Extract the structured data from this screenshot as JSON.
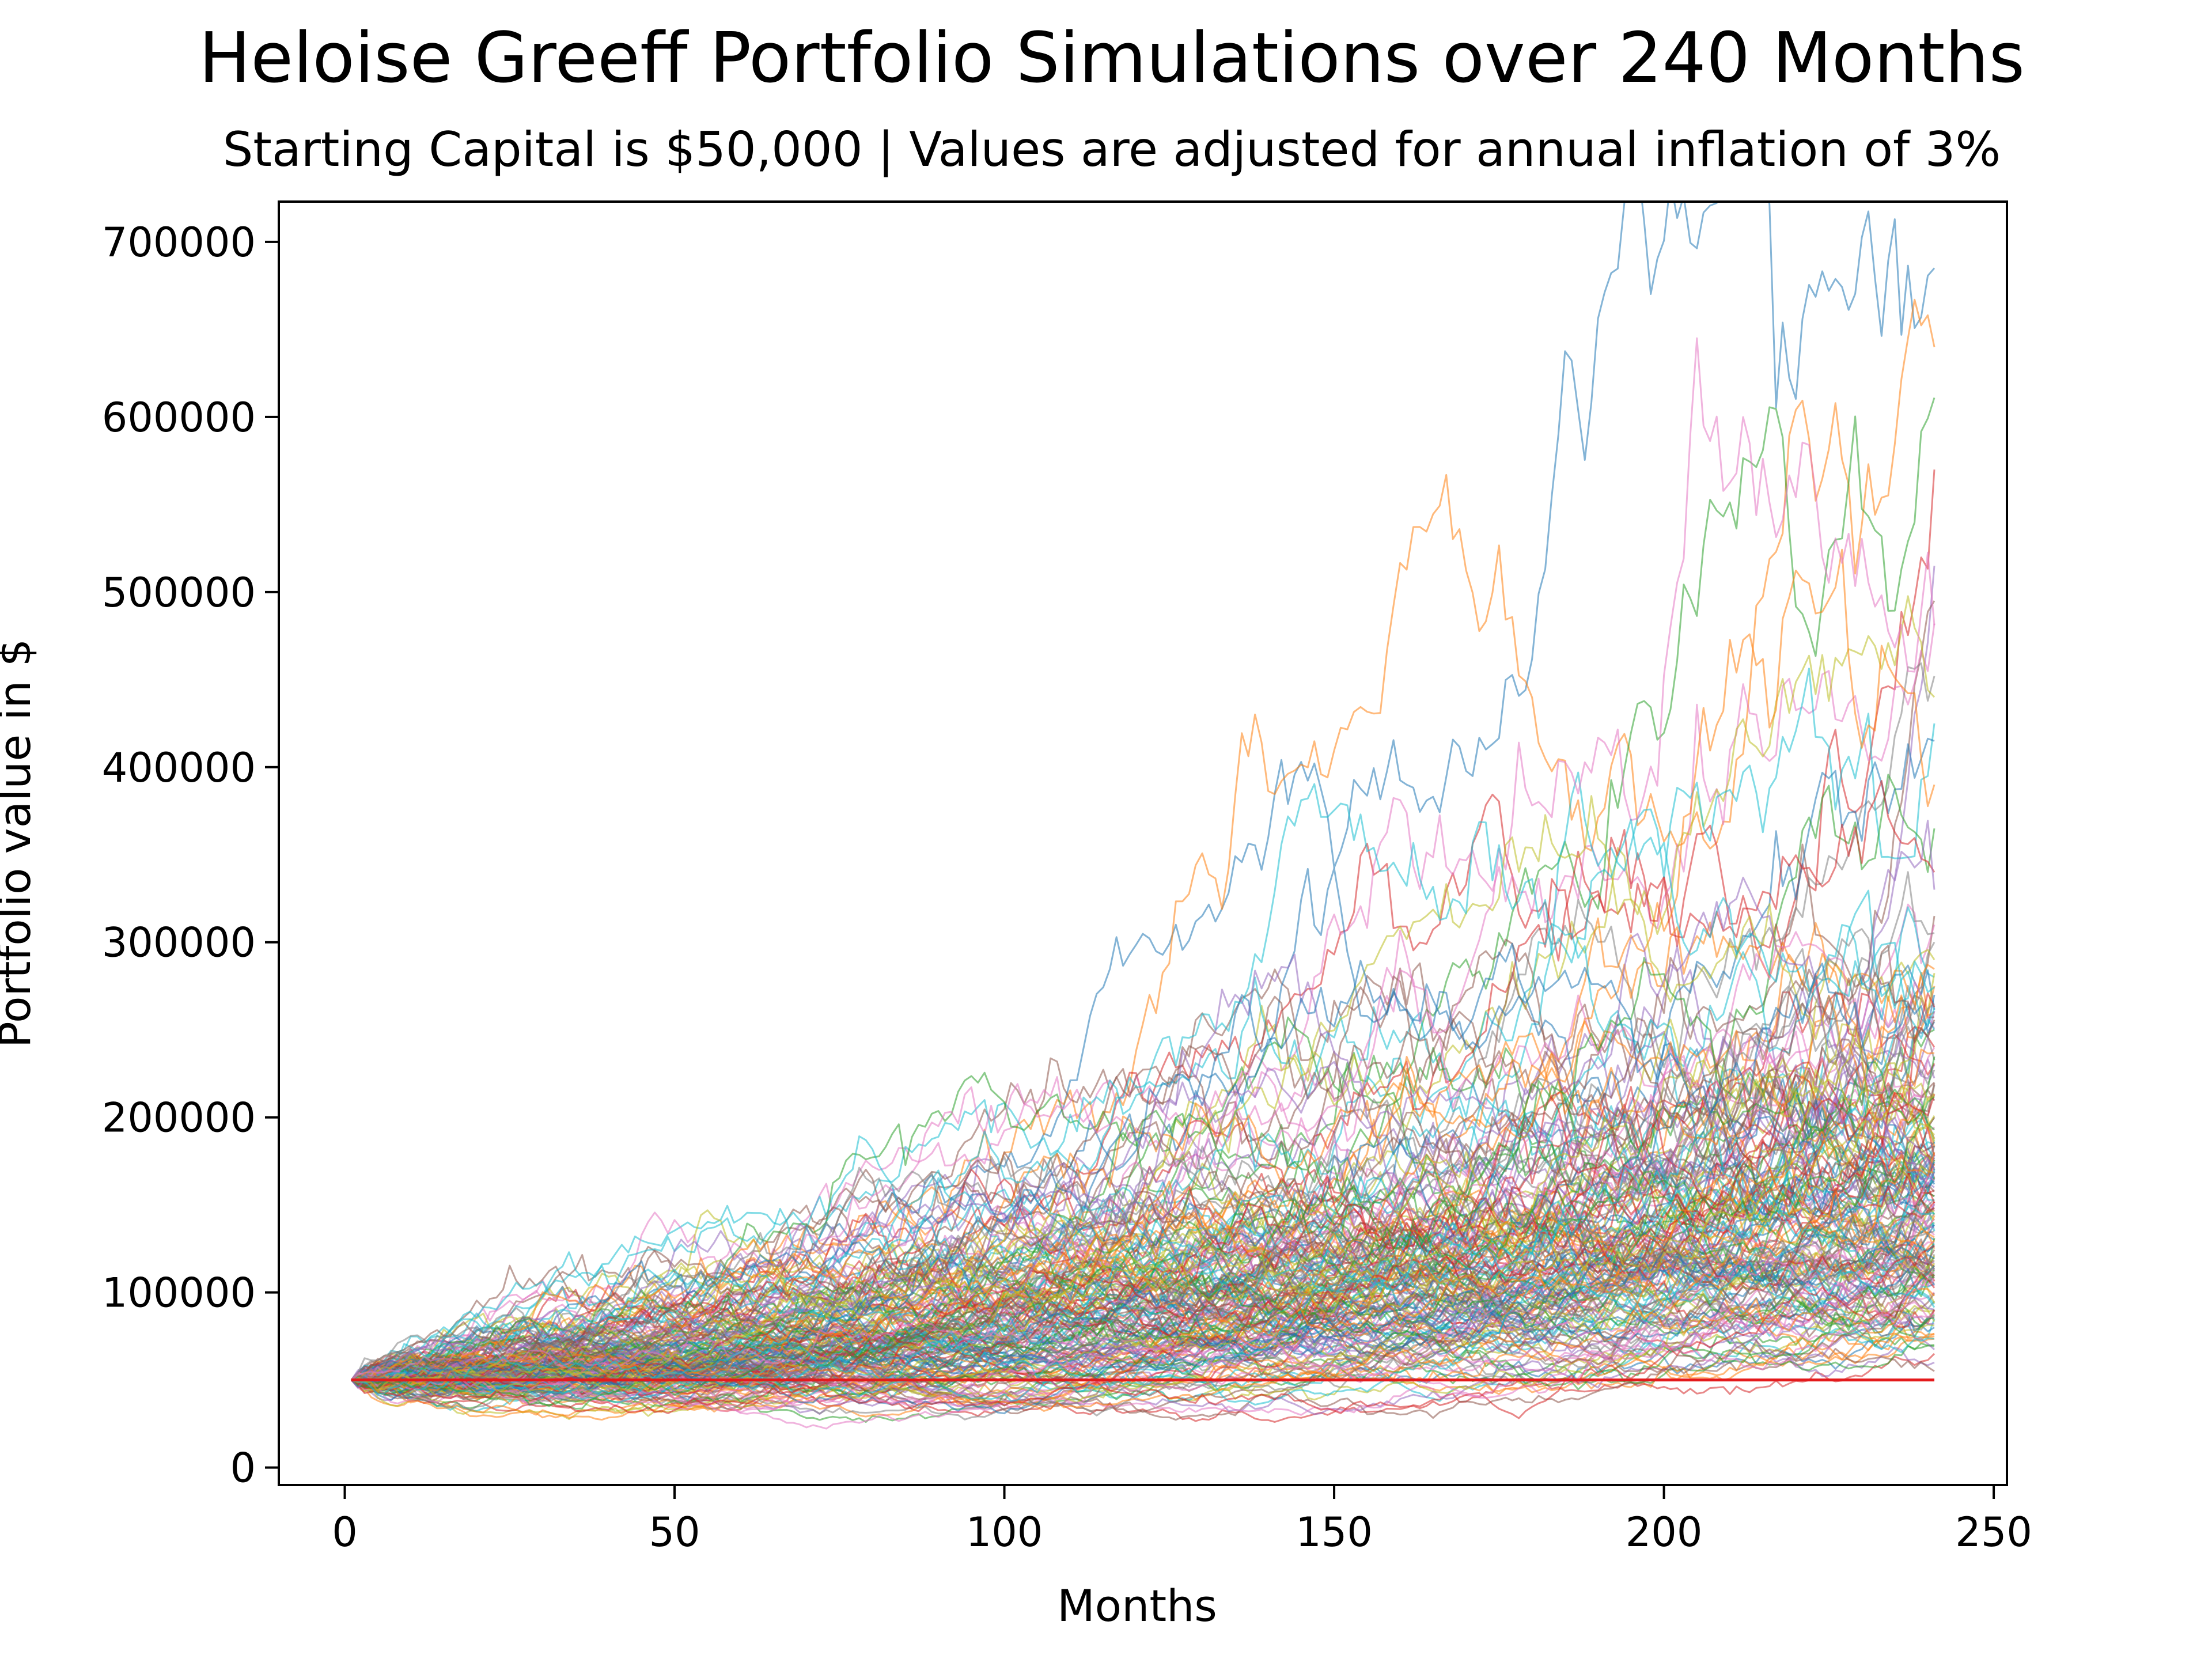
{
  "chart_data": {
    "type": "line",
    "title": "Heloise Greeff Portfolio Simulations over 240 Months",
    "subtitle": "Starting Capital is $50,000 | Values are adjusted for annual inflation of 3%",
    "xlabel": "Months",
    "ylabel": "Portfolio value in $",
    "xlim": [
      -10,
      252
    ],
    "ylim": [
      -10000,
      723000
    ],
    "x_ticks": [
      0,
      50,
      100,
      150,
      200,
      250
    ],
    "x_tick_labels": [
      "0",
      "50",
      "100",
      "150",
      "200",
      "250"
    ],
    "y_ticks": [
      0,
      100000,
      200000,
      300000,
      400000,
      500000,
      600000,
      700000
    ],
    "y_tick_labels": [
      "0",
      "100000",
      "200000",
      "300000",
      "400000",
      "500000",
      "600000",
      "700000"
    ],
    "grid": false,
    "legend": "none",
    "x_range_months": [
      1,
      241
    ],
    "starting_capital": 50000,
    "baseline": {
      "value": 50000,
      "color": "#e41a1c"
    },
    "num_simulations": 200,
    "series_colors": [
      "#1f77b4",
      "#ff7f0e",
      "#2ca02c",
      "#d62728",
      "#9467bd",
      "#8c564b",
      "#e377c2",
      "#7f7f7f",
      "#bcbd22",
      "#17becf"
    ],
    "representative_final_values": [
      685000,
      640000,
      611000,
      570000,
      515000,
      495000,
      482000,
      452000,
      440000,
      425000,
      415000,
      390000,
      365000,
      340000,
      330000,
      315000,
      310000,
      300000,
      290000,
      280000,
      270000,
      260000,
      250000,
      240000,
      230000,
      220000,
      210000,
      200000,
      190000,
      185000,
      180000,
      175000,
      170000,
      165000,
      160000,
      155000,
      150000,
      145000,
      140000,
      135000,
      130000,
      125000,
      120000,
      115000,
      110000,
      105000,
      100000,
      95000,
      90000,
      85000,
      80000,
      75000,
      70000,
      65000,
      60000,
      55000
    ],
    "minimum_path_low": 22000
  }
}
